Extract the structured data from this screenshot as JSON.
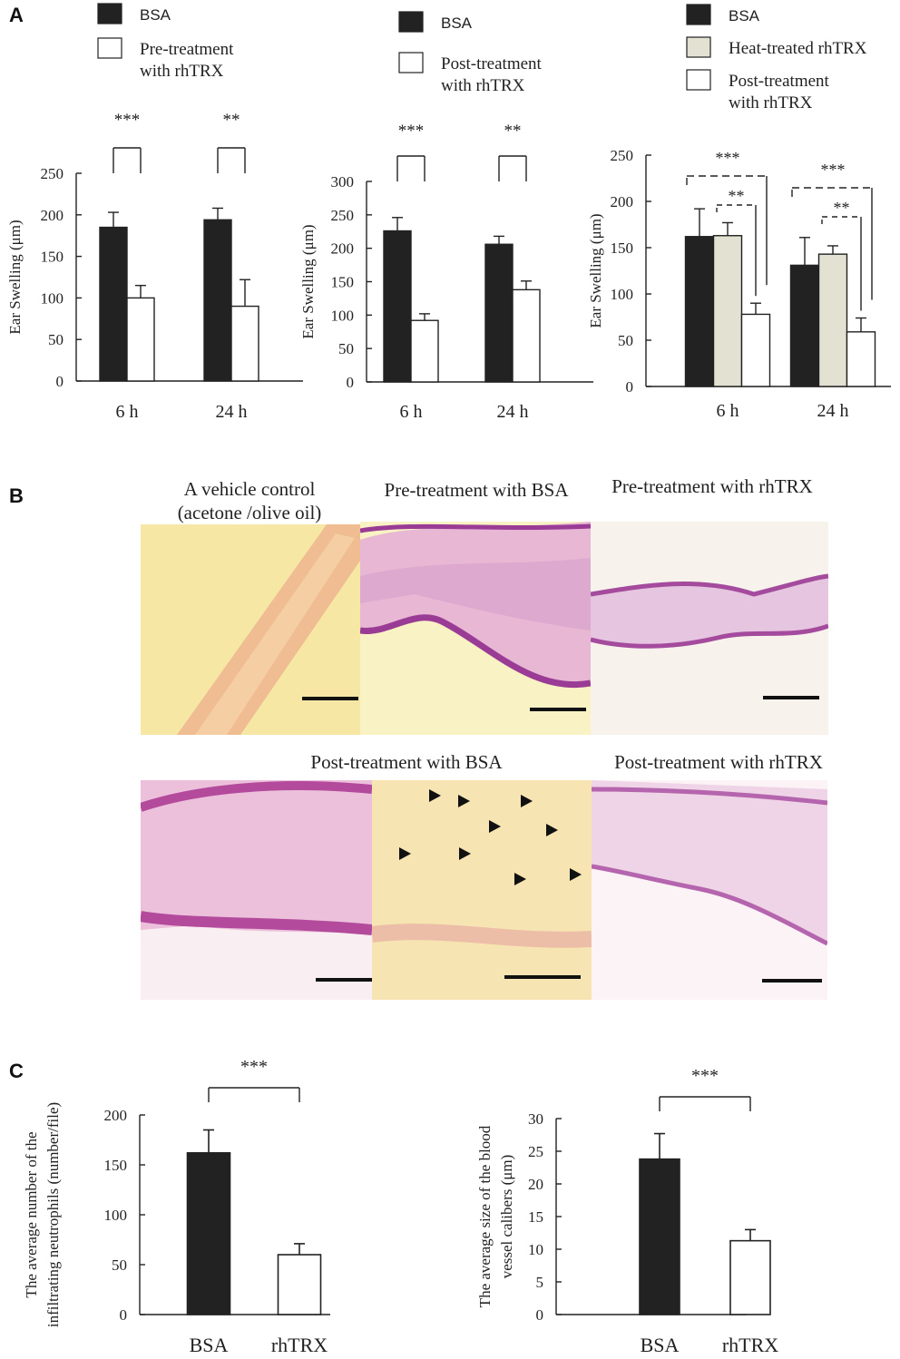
{
  "panels": {
    "a": "A",
    "b": "B",
    "c": "C"
  },
  "colors": {
    "black": "#222222",
    "white": "#ffffff",
    "beige": "#e3e1d2"
  },
  "chart_data": [
    {
      "type": "bar",
      "legend": [
        {
          "label": "BSA",
          "color": "black"
        },
        {
          "label": "Pre-treatment\nwith rhTRX",
          "color": "white"
        }
      ],
      "categories": [
        "6 h",
        "24 h"
      ],
      "series": [
        {
          "name": "BSA",
          "color": "black",
          "values": [
            185,
            194
          ],
          "errors": [
            18,
            14
          ]
        },
        {
          "name": "Pre-treatment with rhTRX",
          "color": "white",
          "values": [
            100,
            90
          ],
          "errors": [
            15,
            32
          ]
        }
      ],
      "ylabel": "Ear Swelling (μm)",
      "ylim": [
        0,
        250
      ],
      "yticks": [
        0,
        50,
        100,
        150,
        200,
        250
      ],
      "significance": [
        "***",
        "**"
      ]
    },
    {
      "type": "bar",
      "legend": [
        {
          "label": "BSA",
          "color": "black"
        },
        {
          "label": "Post-treatment\nwith rhTRX",
          "color": "white"
        }
      ],
      "categories": [
        "6 h",
        "24 h"
      ],
      "series": [
        {
          "name": "BSA",
          "color": "black",
          "values": [
            226,
            206
          ],
          "errors": [
            20,
            12
          ]
        },
        {
          "name": "Post-treatment with rhTRX",
          "color": "white",
          "values": [
            92,
            138
          ],
          "errors": [
            10,
            13
          ]
        }
      ],
      "ylabel": "Ear Swelling (μm)",
      "ylim": [
        0,
        300
      ],
      "yticks": [
        0,
        50,
        100,
        150,
        200,
        250,
        300
      ],
      "significance": [
        "***",
        "**"
      ]
    },
    {
      "type": "bar",
      "legend": [
        {
          "label": "BSA",
          "color": "black"
        },
        {
          "label": "Heat-treated rhTRX",
          "color": "beige"
        },
        {
          "label": "Post-treatment\nwith rhTRX",
          "color": "white"
        }
      ],
      "categories": [
        "6 h",
        "24 h"
      ],
      "series": [
        {
          "name": "BSA",
          "color": "black",
          "values": [
            162,
            131
          ],
          "errors": [
            30,
            30
          ]
        },
        {
          "name": "Heat-treated rhTRX",
          "color": "beige",
          "values": [
            163,
            143
          ],
          "errors": [
            14,
            9
          ]
        },
        {
          "name": "Post-treatment with rhTRX",
          "color": "white",
          "values": [
            78,
            59
          ],
          "errors": [
            12,
            15
          ]
        }
      ],
      "ylabel": "Ear Swelling (μm)",
      "ylim": [
        0,
        250
      ],
      "yticks": [
        0,
        50,
        100,
        150,
        200,
        250
      ],
      "significance": [
        [
          "***",
          "**"
        ],
        [
          "***",
          "**"
        ]
      ]
    },
    {
      "type": "bar",
      "categories": [
        "BSA",
        "rhTRX"
      ],
      "series": [
        {
          "values": [
            162,
            60
          ],
          "errors": [
            23,
            11
          ],
          "colors": [
            "black",
            "white"
          ]
        }
      ],
      "ylabel": "The average number of the\ninfiltrating neutrophils (number/file)",
      "ylim": [
        0,
        200
      ],
      "yticks": [
        0,
        50,
        100,
        150,
        200
      ],
      "significance": [
        "***"
      ]
    },
    {
      "type": "bar",
      "categories": [
        "BSA",
        "rhTRX"
      ],
      "series": [
        {
          "values": [
            23.8,
            11.3
          ],
          "errors": [
            3.9,
            1.7
          ],
          "colors": [
            "black",
            "white"
          ]
        }
      ],
      "ylabel": "The average size of the blood\nvessel calibers  (μm)",
      "ylim": [
        0,
        30
      ],
      "yticks": [
        0,
        5,
        10,
        15,
        20,
        25,
        30
      ],
      "significance": [
        "***"
      ]
    }
  ],
  "histology": {
    "captions": {
      "vehicle": "A vehicle control\n(acetone /olive oil)",
      "pre_bsa": "Pre-treatment with BSA",
      "pre_rhtrx": "Pre-treatment with rhTRX",
      "post_bsa": "Post-treatment with BSA",
      "post_rhtrx": "Post-treatment with rhTRX"
    }
  }
}
